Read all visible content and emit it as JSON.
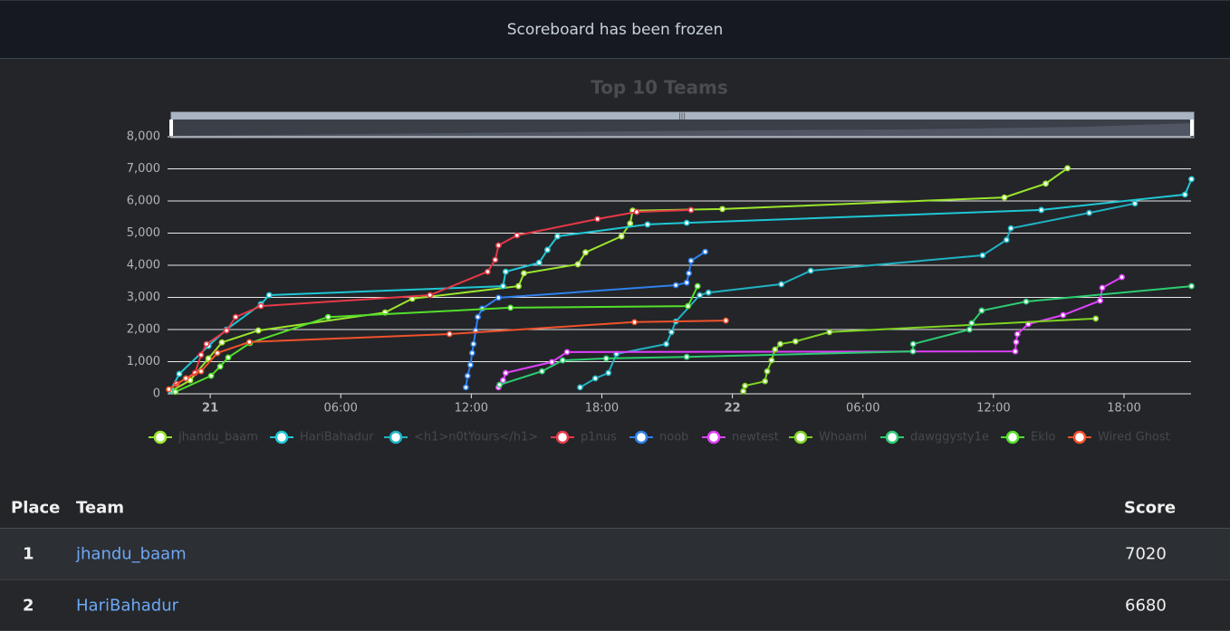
{
  "banner": "Scoreboard has been frozen",
  "chart_data": {
    "type": "line",
    "title": "Top 10 Teams",
    "xlim": [
      -1.96,
      45.08
    ],
    "xticks": [
      {
        "value": 0,
        "label": "21"
      },
      {
        "value": 6,
        "label": "06:00"
      },
      {
        "value": 12,
        "label": "12:00"
      },
      {
        "value": 18,
        "label": "18:00"
      },
      {
        "value": 24,
        "label": "22"
      },
      {
        "value": 30,
        "label": "06:00"
      },
      {
        "value": 36,
        "label": "12:00"
      },
      {
        "value": 42,
        "label": "18:00"
      }
    ],
    "ylim": [
      0,
      8000
    ],
    "yticks": [
      0,
      {
        "value": 1000,
        "label": "1,000"
      },
      {
        "value": 2000,
        "label": "2,000"
      },
      {
        "value": 3000,
        "label": "3,000"
      },
      {
        "value": 4000,
        "label": "4,000"
      },
      {
        "value": 5000,
        "label": "5,000"
      },
      {
        "value": 6000,
        "label": "6,000"
      },
      {
        "value": 7000,
        "label": "7,000"
      },
      {
        "value": 8000,
        "label": "8,000"
      }
    ],
    "grid": true,
    "series": [
      {
        "name": "jhandu_baam",
        "color": "#9be52c",
        "x": [
          -1.75,
          -0.92,
          -0.08,
          0.54,
          2.21,
          8.04,
          9.29,
          14.17,
          14.42,
          16.9,
          17.25,
          18.9,
          19.3,
          19.42,
          23.54,
          36.5,
          38.4,
          39.4
        ],
        "values": [
          100,
          420,
          1100,
          1600,
          1970,
          2530,
          2960,
          3350,
          3750,
          4030,
          4400,
          4900,
          5300,
          5700,
          5750,
          6110,
          6540,
          7020
        ]
      },
      {
        "name": "HariBahadur",
        "color": "#1fc7d4",
        "x": [
          -1.83,
          -1.42,
          -0.08,
          0.75,
          2.33,
          2.71,
          13.46,
          13.58,
          15.12,
          15.5,
          15.96,
          20.1,
          21.9,
          38.2,
          44.8,
          45.1
        ],
        "values": [
          100,
          620,
          1490,
          2000,
          2790,
          3070,
          3350,
          3800,
          4080,
          4480,
          4900,
          5270,
          5320,
          5720,
          6200,
          6680
        ]
      },
      {
        "name": "<h1>n0tYours</h1>",
        "color": "#20b2c4",
        "x": [
          17.0,
          17.7,
          18.3,
          18.67,
          20.96,
          21.2,
          21.4,
          22.5,
          22.9,
          26.25,
          27.6,
          35.5,
          36.6,
          36.8,
          40.4,
          42.5
        ],
        "values": [
          200,
          480,
          650,
          1240,
          1550,
          1920,
          2250,
          3070,
          3150,
          3410,
          3830,
          4310,
          4790,
          5150,
          5630,
          5920
        ]
      },
      {
        "name": "p1nus",
        "color": "#e63946",
        "x": [
          -1.54,
          -0.7,
          -0.42,
          -0.17,
          0.75,
          1.17,
          2.33,
          10.1,
          12.75,
          13.1,
          13.25,
          14.1,
          17.8,
          19.6,
          22.1
        ],
        "values": [
          310,
          650,
          1210,
          1550,
          1970,
          2390,
          2730,
          3070,
          3800,
          4170,
          4620,
          4930,
          5440,
          5660,
          5720
        ]
      },
      {
        "name": "noob",
        "color": "#2f80ed",
        "x": [
          11.75,
          11.83,
          11.96,
          12.04,
          12.1,
          12.2,
          12.3,
          12.5,
          13.25,
          21.4,
          21.9,
          22.0,
          22.1,
          22.75
        ],
        "values": [
          200,
          560,
          900,
          1270,
          1550,
          1970,
          2390,
          2650,
          2990,
          3380,
          3460,
          3750,
          4140,
          4420
        ]
      },
      {
        "name": "newtest",
        "color": "#e040fb",
        "x": [
          13.25,
          13.46,
          13.58,
          15.7,
          16.4,
          37.0,
          37.04,
          37.1,
          37.6,
          39.2,
          40.9,
          41.0,
          41.9
        ],
        "values": [
          200,
          420,
          650,
          990,
          1300,
          1320,
          1610,
          1860,
          2170,
          2450,
          2900,
          3300,
          3630
        ]
      },
      {
        "name": "Whoami",
        "color": "#7ed321",
        "x": [
          24.5,
          24.58,
          25.5,
          25.6,
          25.8,
          25.96,
          26.2,
          26.9,
          28.46,
          40.7
        ],
        "values": [
          80,
          250,
          390,
          700,
          1040,
          1380,
          1550,
          1630,
          1920,
          2340
        ]
      },
      {
        "name": "dawggysty1e",
        "color": "#2ecc71",
        "x": [
          13.3,
          15.25,
          16.2,
          18.2,
          21.9,
          32.3,
          32.31,
          34.9,
          35.0,
          35.46,
          37.5,
          45.1
        ],
        "values": [
          280,
          700,
          1040,
          1100,
          1150,
          1320,
          1550,
          2000,
          2200,
          2590,
          2870,
          3350
        ]
      },
      {
        "name": "Eklo",
        "color": "#52e02a",
        "x": [
          -1.6,
          0.04,
          0.46,
          0.83,
          1.83,
          5.42,
          13.8,
          21.96,
          22.4
        ],
        "values": [
          60,
          560,
          850,
          1130,
          1580,
          2390,
          2680,
          2730,
          3350
        ]
      },
      {
        "name": "Wired Ghost",
        "color": "#f0522b",
        "x": [
          -1.9,
          -1.12,
          -0.42,
          0.33,
          1.8,
          11.0,
          19.5,
          23.7
        ],
        "values": [
          140,
          480,
          700,
          1270,
          1610,
          1860,
          2230,
          2280
        ]
      }
    ]
  },
  "table": {
    "headers": [
      "Place",
      "Team",
      "Score"
    ],
    "rows": [
      [
        1,
        "jhandu_baam",
        7020
      ],
      [
        2,
        "HariBahadur",
        6680
      ]
    ]
  }
}
